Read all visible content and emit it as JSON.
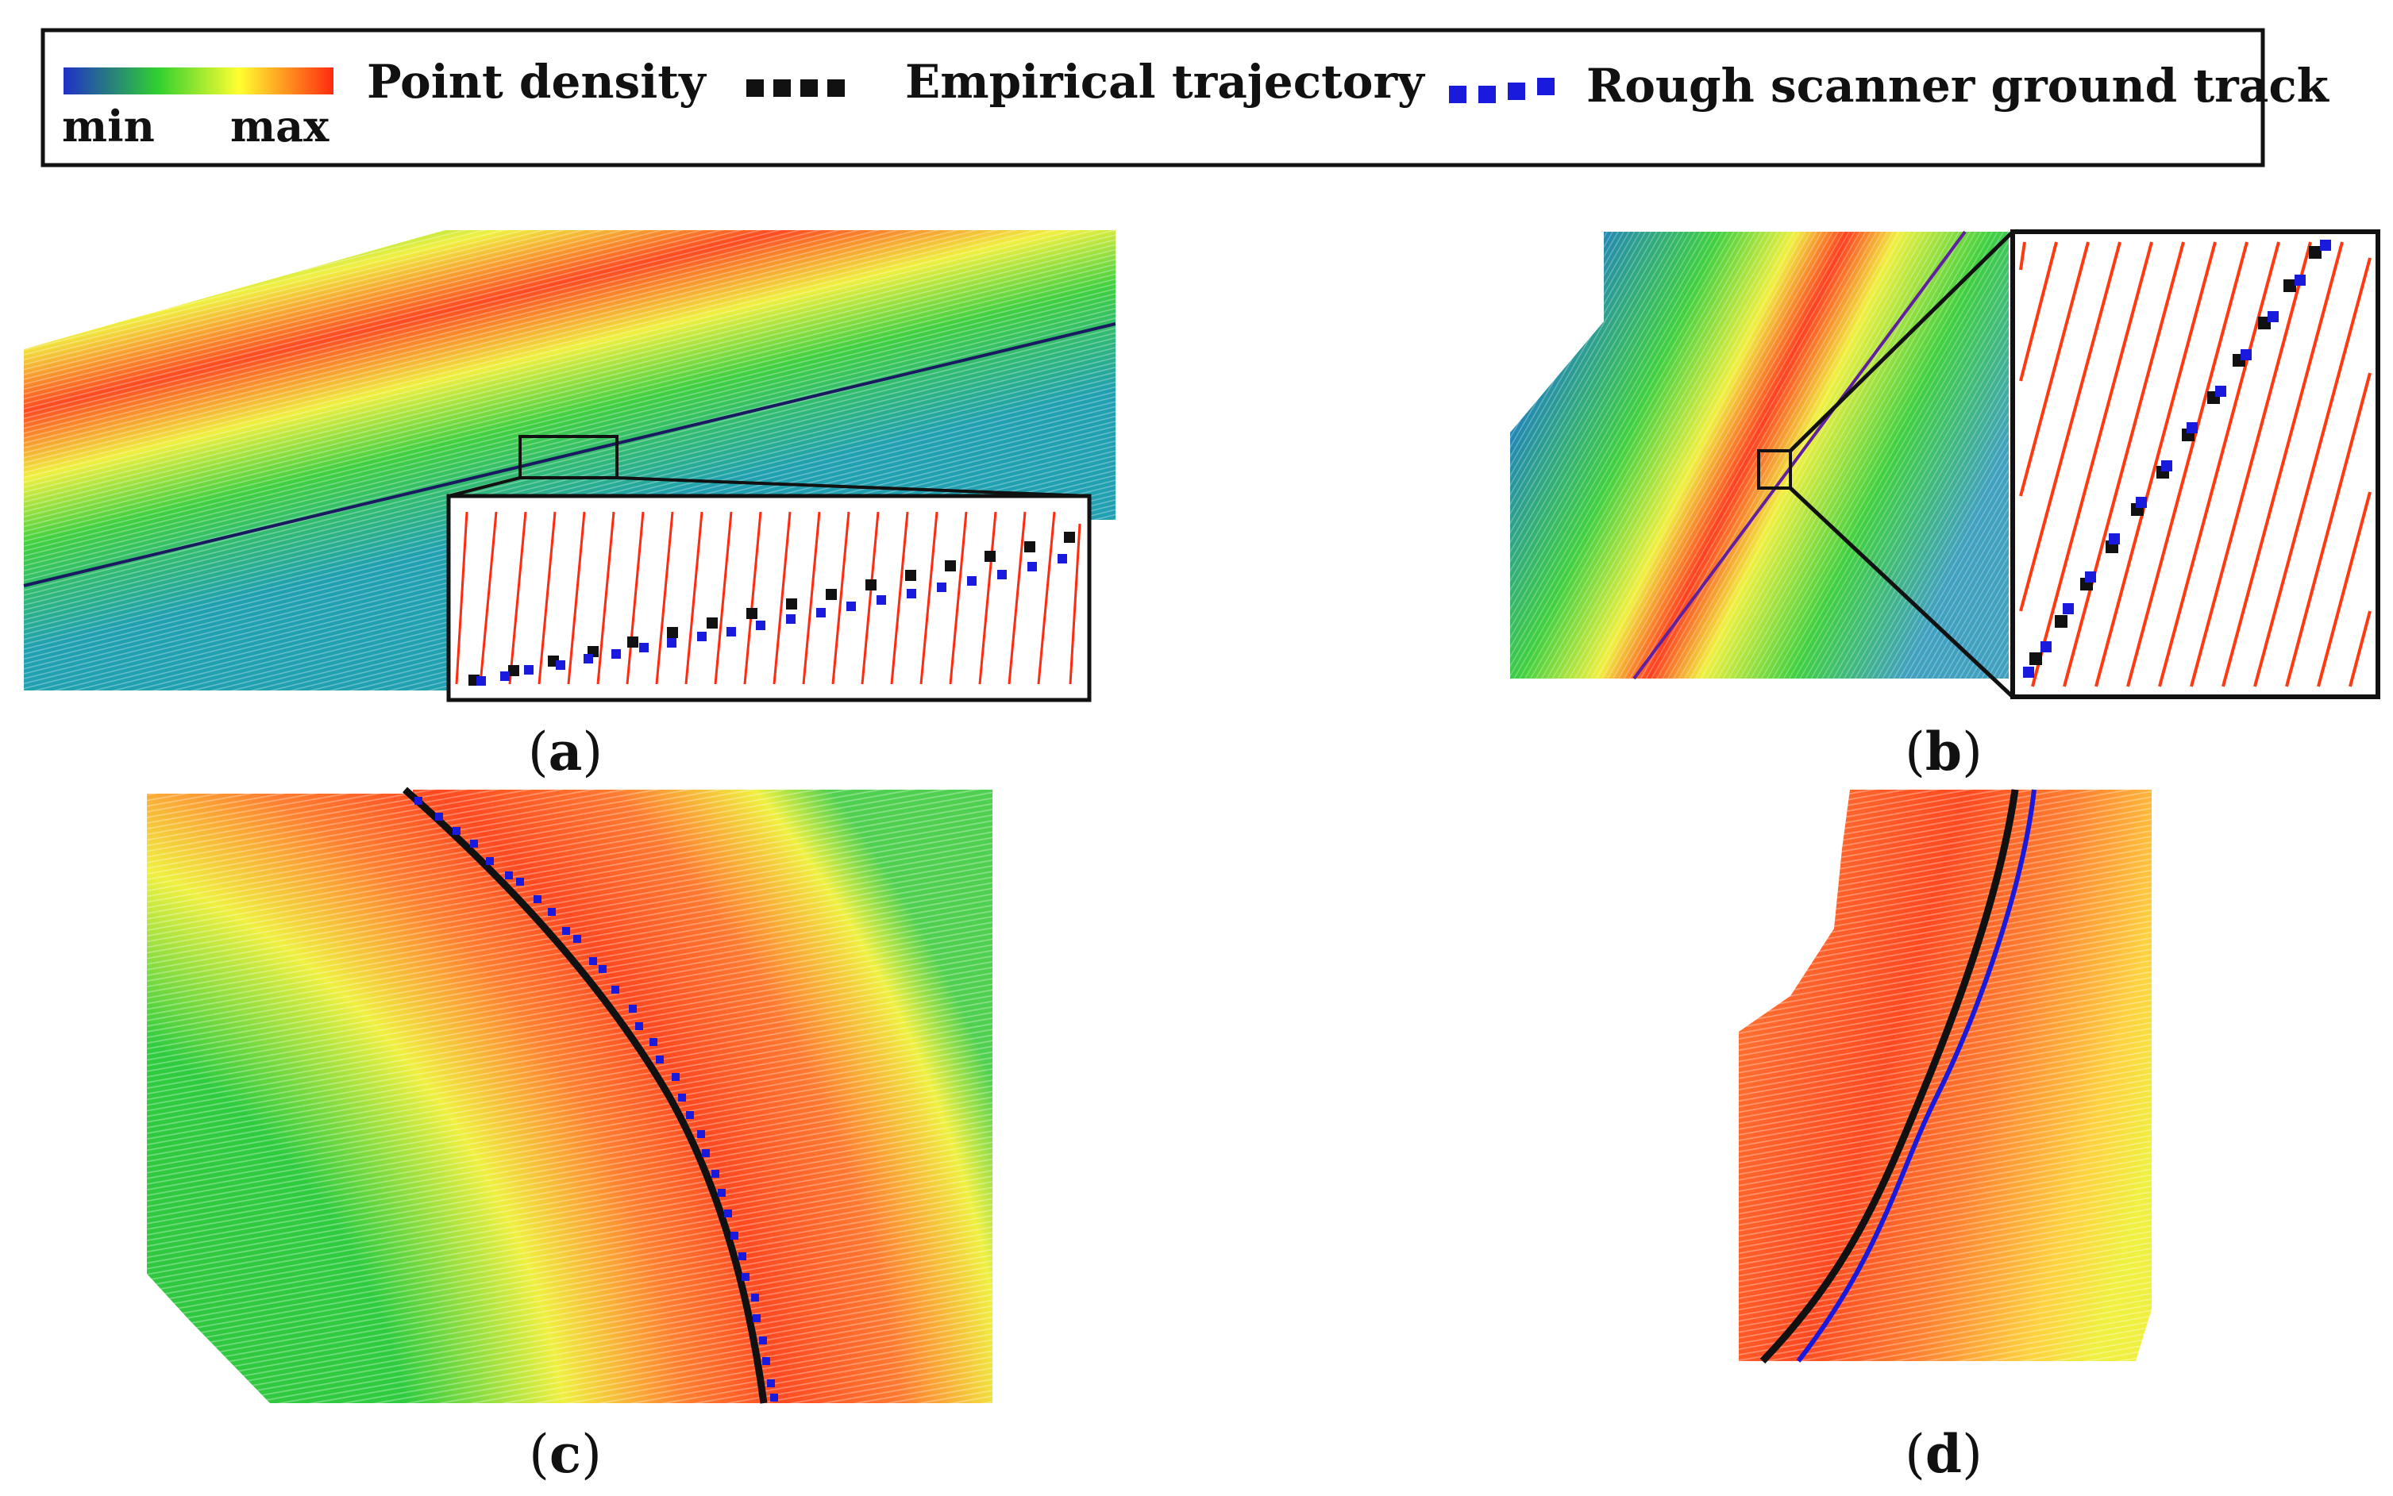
{
  "legend": {
    "density_label": "Point density",
    "min_label": "min",
    "max_label": "max",
    "empirical_label": "Empirical trajectory",
    "rough_label": "Rough scanner ground track"
  },
  "colors": {
    "empirical": "#111111",
    "rough": "#1a1adc",
    "density_min": "#2040c8",
    "density_mid": "#30d030",
    "density_high": "#ffff40",
    "density_max": "#ff3010",
    "scanline": "#ff2a10"
  },
  "panels": [
    {
      "open": "(",
      "letter": "a",
      "close": ")"
    },
    {
      "open": "(",
      "letter": "b",
      "close": ")"
    },
    {
      "open": "(",
      "letter": "c",
      "close": ")"
    },
    {
      "open": "(",
      "letter": "d",
      "close": ")"
    }
  ]
}
